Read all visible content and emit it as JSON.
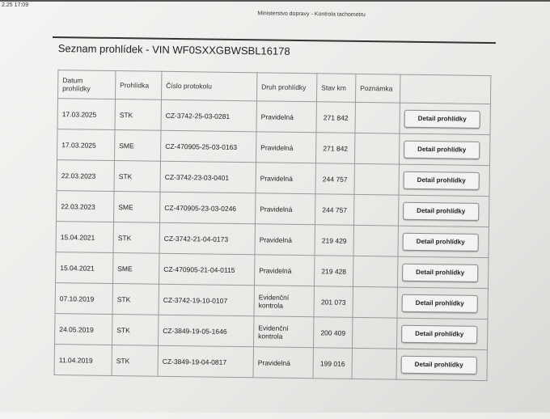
{
  "timestamp": "2.25 17:09",
  "print_header": "Ministerstvo dopravy - Kontrola tachometru",
  "page_title": "Seznam prohlídek - VIN WF0SXXGBWSBL16178",
  "table": {
    "headers": [
      "Datum prohlídky",
      "Prohlídka",
      "Číslo protokolu",
      "Druh prohlídky",
      "Stav km",
      "Poznámka",
      ""
    ],
    "button_label": "Detail prohlídky",
    "rows": [
      {
        "date": "17.03.2025",
        "type": "STK",
        "protocol": "CZ-3742-25-03-0281",
        "kind": "Pravidelná",
        "km": "271 842",
        "note": ""
      },
      {
        "date": "17.03.2025",
        "type": "SME",
        "protocol": "CZ-470905-25-03-0163",
        "kind": "Pravidelná",
        "km": "271 842",
        "note": ""
      },
      {
        "date": "22.03.2023",
        "type": "STK",
        "protocol": "CZ-3742-23-03-0401",
        "kind": "Pravidelná",
        "km": "244 757",
        "note": ""
      },
      {
        "date": "22.03.2023",
        "type": "SME",
        "protocol": "CZ-470905-23-03-0246",
        "kind": "Pravidelná",
        "km": "244 757",
        "note": ""
      },
      {
        "date": "15.04.2021",
        "type": "STK",
        "protocol": "CZ-3742-21-04-0173",
        "kind": "Pravidelná",
        "km": "219 429",
        "note": ""
      },
      {
        "date": "15.04.2021",
        "type": "SME",
        "protocol": "CZ-470905-21-04-0115",
        "kind": "Pravidelná",
        "km": "219 428",
        "note": ""
      },
      {
        "date": "07.10.2019",
        "type": "STK",
        "protocol": "CZ-3742-19-10-0107",
        "kind": "Evidenční kontrola",
        "km": "201 073",
        "note": ""
      },
      {
        "date": "24.05.2019",
        "type": "STK",
        "protocol": "CZ-3849-19-05-1646",
        "kind": "Evidenční kontrola",
        "km": "200 409",
        "note": ""
      },
      {
        "date": "11.04.2019",
        "type": "STK",
        "protocol": "CZ-3849-19-04-0817",
        "kind": "Pravidelná",
        "km": "199 016",
        "note": ""
      }
    ]
  }
}
